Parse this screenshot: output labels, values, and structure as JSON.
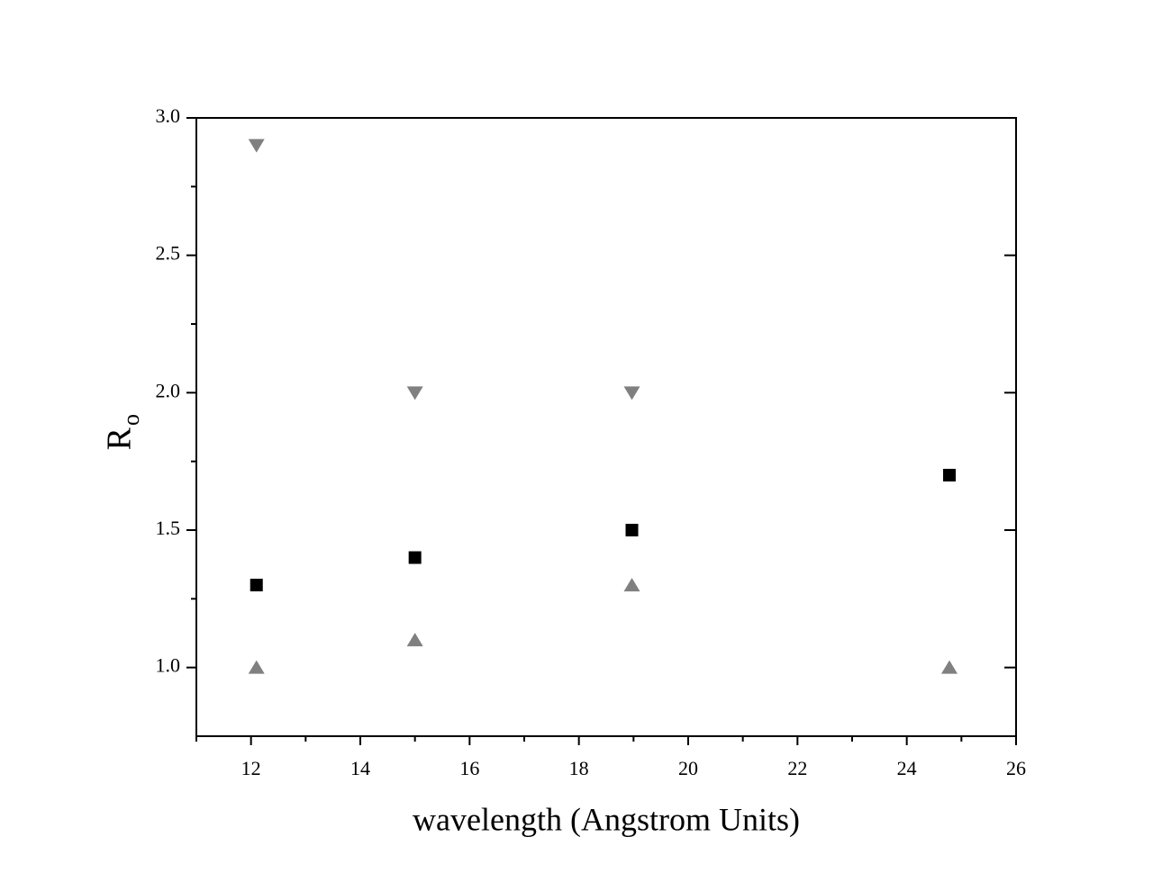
{
  "chart_data": {
    "type": "scatter",
    "x_label": "wavelength (Angstrom Units)",
    "y_label": "R",
    "y_label_subscript": "o",
    "xlim": [
      11,
      26
    ],
    "xticks": [
      12,
      14,
      16,
      18,
      20,
      22,
      24,
      26
    ],
    "xminor_ticks": [
      11,
      13,
      15,
      17,
      19,
      21,
      23,
      25
    ],
    "ylim": [
      0.75,
      3.0
    ],
    "yticks": [
      {
        "value": 1,
        "label": "1.0"
      },
      {
        "value": 1.5,
        "label": "1.5"
      },
      {
        "value": 2,
        "label": "2.0"
      },
      {
        "value": 2.5,
        "label": "2.5"
      },
      {
        "value": 3,
        "label": "3.0"
      }
    ],
    "yminor_ticks": [
      1.25,
      1.75,
      2.25,
      2.75
    ],
    "series": [
      {
        "marker": "square",
        "color": "#000000",
        "x": [
          12.1,
          15.0,
          18.97,
          24.78
        ],
        "values": [
          1.3,
          1.4,
          1.5,
          1.7
        ]
      },
      {
        "marker": "triangle-down",
        "color": "#808080",
        "x": [
          12.1,
          15.0,
          18.97
        ],
        "values": [
          2.9,
          2.0,
          2.0
        ]
      },
      {
        "marker": "triangle-up",
        "color": "#808080",
        "x": [
          12.1,
          15.0,
          18.97,
          24.78
        ],
        "values": [
          1.0,
          1.1,
          1.3,
          1.0
        ]
      }
    ]
  }
}
